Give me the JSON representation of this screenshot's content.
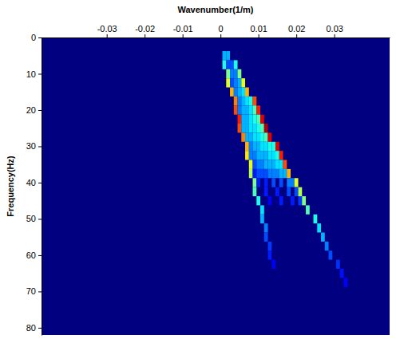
{
  "chart_data": {
    "type": "heatmap",
    "title": "Wavenumber(1/m)",
    "y_label": "Frequency(Hz)",
    "xlim": [
      -0.0472,
      0.0446
    ],
    "xticks": [
      -0.03,
      -0.02,
      -0.01,
      0,
      0.01,
      0.02,
      0.03
    ],
    "ylim": [
      0,
      82
    ],
    "yticks": [
      0,
      10,
      20,
      30,
      40,
      50,
      60,
      70,
      80
    ],
    "zlim": [
      0,
      1
    ],
    "cells": [
      [
        0.001,
        5,
        0.3
      ],
      [
        0.002,
        5,
        0.3
      ],
      [
        0.001,
        7.5,
        0.4
      ],
      [
        0.002,
        7.5,
        0.2
      ],
      [
        0.003,
        7.5,
        0.2
      ],
      [
        0.004,
        7.5,
        0.4
      ],
      [
        0.002,
        10,
        0.5
      ],
      [
        0.003,
        10,
        0.25
      ],
      [
        0.004,
        10,
        0.25
      ],
      [
        0.005,
        10,
        0.5
      ],
      [
        0.002,
        12.5,
        0.6
      ],
      [
        0.003,
        12.5,
        0.2
      ],
      [
        0.004,
        12.5,
        0.25
      ],
      [
        0.005,
        12.5,
        0.3
      ],
      [
        0.006,
        12.5,
        0.6
      ],
      [
        0.003,
        15,
        0.7
      ],
      [
        0.004,
        15,
        0.25
      ],
      [
        0.005,
        15,
        0.3
      ],
      [
        0.006,
        15,
        0.35
      ],
      [
        0.007,
        15,
        0.7
      ],
      [
        0.004,
        17.5,
        0.75
      ],
      [
        0.005,
        17.5,
        0.25
      ],
      [
        0.006,
        17.5,
        0.3
      ],
      [
        0.007,
        17.5,
        0.35
      ],
      [
        0.008,
        17.5,
        0.4
      ],
      [
        0.009,
        17.5,
        0.8
      ],
      [
        0.004,
        20,
        0.8
      ],
      [
        0.005,
        20,
        0.25
      ],
      [
        0.006,
        20,
        0.3
      ],
      [
        0.007,
        20,
        0.3
      ],
      [
        0.008,
        20,
        0.35
      ],
      [
        0.009,
        20,
        0.45
      ],
      [
        0.01,
        20,
        0.85
      ],
      [
        0.005,
        22.5,
        0.85
      ],
      [
        0.006,
        22.5,
        0.3
      ],
      [
        0.007,
        22.5,
        0.3
      ],
      [
        0.008,
        22.5,
        0.35
      ],
      [
        0.009,
        22.5,
        0.4
      ],
      [
        0.01,
        22.5,
        0.45
      ],
      [
        0.011,
        22.5,
        0.9
      ],
      [
        0.005,
        25,
        0.8
      ],
      [
        0.006,
        25,
        0.3
      ],
      [
        0.007,
        25,
        0.3
      ],
      [
        0.008,
        25,
        0.35
      ],
      [
        0.009,
        25,
        0.35
      ],
      [
        0.01,
        25,
        0.4
      ],
      [
        0.011,
        25,
        0.45
      ],
      [
        0.012,
        25,
        0.95
      ],
      [
        0.006,
        27.5,
        0.75
      ],
      [
        0.007,
        27.5,
        0.3
      ],
      [
        0.008,
        27.5,
        0.3
      ],
      [
        0.009,
        27.5,
        0.35
      ],
      [
        0.01,
        27.5,
        0.35
      ],
      [
        0.011,
        27.5,
        0.4
      ],
      [
        0.012,
        27.5,
        0.45
      ],
      [
        0.013,
        27.5,
        0.9
      ],
      [
        0.007,
        30,
        0.7
      ],
      [
        0.008,
        30,
        0.25
      ],
      [
        0.009,
        30,
        0.3
      ],
      [
        0.01,
        30,
        0.3
      ],
      [
        0.011,
        30,
        0.35
      ],
      [
        0.012,
        30,
        0.35
      ],
      [
        0.013,
        30,
        0.4
      ],
      [
        0.014,
        30,
        0.4
      ],
      [
        0.015,
        30,
        0.9
      ],
      [
        0.007,
        32.5,
        0.65
      ],
      [
        0.008,
        32.5,
        0.25
      ],
      [
        0.009,
        32.5,
        0.25
      ],
      [
        0.01,
        32.5,
        0.3
      ],
      [
        0.011,
        32.5,
        0.3
      ],
      [
        0.012,
        32.5,
        0.3
      ],
      [
        0.013,
        32.5,
        0.35
      ],
      [
        0.014,
        32.5,
        0.35
      ],
      [
        0.015,
        32.5,
        0.4
      ],
      [
        0.016,
        32.5,
        0.85
      ],
      [
        0.008,
        35,
        0.6
      ],
      [
        0.009,
        35,
        0.2
      ],
      [
        0.01,
        35,
        0.25
      ],
      [
        0.011,
        35,
        0.25
      ],
      [
        0.012,
        35,
        0.3
      ],
      [
        0.013,
        35,
        0.3
      ],
      [
        0.014,
        35,
        0.3
      ],
      [
        0.015,
        35,
        0.35
      ],
      [
        0.016,
        35,
        0.35
      ],
      [
        0.017,
        35,
        0.8
      ],
      [
        0.008,
        37.5,
        0.55
      ],
      [
        0.009,
        37.5,
        0.15
      ],
      [
        0.01,
        37.5,
        0.2
      ],
      [
        0.011,
        37.5,
        0.2
      ],
      [
        0.012,
        37.5,
        0.2
      ],
      [
        0.013,
        37.5,
        0.25
      ],
      [
        0.014,
        37.5,
        0.25
      ],
      [
        0.015,
        37.5,
        0.25
      ],
      [
        0.016,
        37.5,
        0.3
      ],
      [
        0.017,
        37.5,
        0.3
      ],
      [
        0.018,
        37.5,
        0.7
      ],
      [
        0.009,
        40,
        0.5
      ],
      [
        0.01,
        40,
        0.15
      ],
      [
        0.012,
        40,
        0.15
      ],
      [
        0.014,
        40,
        0.2
      ],
      [
        0.016,
        40,
        0.2
      ],
      [
        0.018,
        40,
        0.25
      ],
      [
        0.019,
        40,
        0.25
      ],
      [
        0.02,
        40,
        0.6
      ],
      [
        0.009,
        42.5,
        0.45
      ],
      [
        0.012,
        42.5,
        0.15
      ],
      [
        0.015,
        42.5,
        0.15
      ],
      [
        0.018,
        42.5,
        0.2
      ],
      [
        0.02,
        42.5,
        0.2
      ],
      [
        0.021,
        42.5,
        0.55
      ],
      [
        0.01,
        45,
        0.4
      ],
      [
        0.013,
        45,
        0.12
      ],
      [
        0.016,
        45,
        0.15
      ],
      [
        0.019,
        45,
        0.15
      ],
      [
        0.021,
        45,
        0.18
      ],
      [
        0.022,
        45,
        0.5
      ],
      [
        0.011,
        47.5,
        0.35
      ],
      [
        0.023,
        47.5,
        0.45
      ],
      [
        0.011,
        50,
        0.3
      ],
      [
        0.025,
        50,
        0.4
      ],
      [
        0.012,
        52.5,
        0.25
      ],
      [
        0.026,
        52.5,
        0.35
      ],
      [
        0.012,
        55,
        0.2
      ],
      [
        0.027,
        55,
        0.3
      ],
      [
        0.013,
        57.5,
        0.18
      ],
      [
        0.028,
        57.5,
        0.25
      ],
      [
        0.013,
        60,
        0.15
      ],
      [
        0.029,
        60,
        0.2
      ],
      [
        0.014,
        62.5,
        0.12
      ],
      [
        0.031,
        62.5,
        0.17
      ],
      [
        0.032,
        65,
        0.14
      ],
      [
        0.033,
        67.5,
        0.12
      ]
    ]
  }
}
